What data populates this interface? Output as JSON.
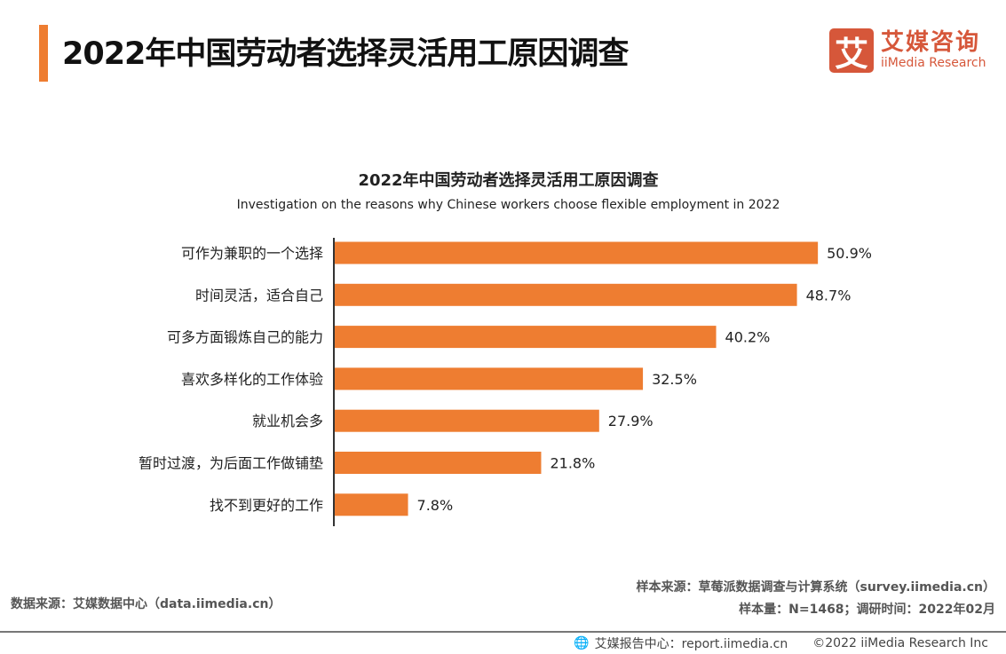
{
  "header": {
    "title": "2022年中国劳动者选择灵活用工原因调查",
    "accent_color": "#ee7d31"
  },
  "logo": {
    "mark": "艾",
    "cn": "艾媒咨询",
    "en": "iiMedia Research",
    "color": "#d6573a"
  },
  "chart_data": {
    "type": "bar",
    "orientation": "horizontal",
    "title": "2022年中国劳动者选择灵活用工原因调查",
    "subtitle": "Investigation on the reasons why Chinese workers choose flexible employment in 2022",
    "categories": [
      "可作为兼职的一个选择",
      "时间灵活，适合自己",
      "可多方面锻炼自己的能力",
      "喜欢多样化的工作体验",
      "就业机会多",
      "暂时过渡，为后面工作做铺垫",
      "找不到更好的工作"
    ],
    "values": [
      50.9,
      48.7,
      40.2,
      32.5,
      27.9,
      21.8,
      7.8
    ],
    "labels": [
      "50.9%",
      "48.7%",
      "40.2%",
      "32.5%",
      "27.9%",
      "21.8%",
      "7.8%"
    ],
    "unit": "%",
    "bar_color": "#ee7d31",
    "grid": false,
    "legend": "none"
  },
  "footer": {
    "source_left": "数据来源：艾媒数据中心（data.iimedia.cn）",
    "sample_source": "样本来源：草莓派数据调查与计算系统（survey.iimedia.cn）",
    "sample_size": "样本量：N=1468；调研时间：2022年02月",
    "report_center": "艾媒报告中心：report.iimedia.cn",
    "copyright": "©2022  iiMedia Research  Inc"
  }
}
